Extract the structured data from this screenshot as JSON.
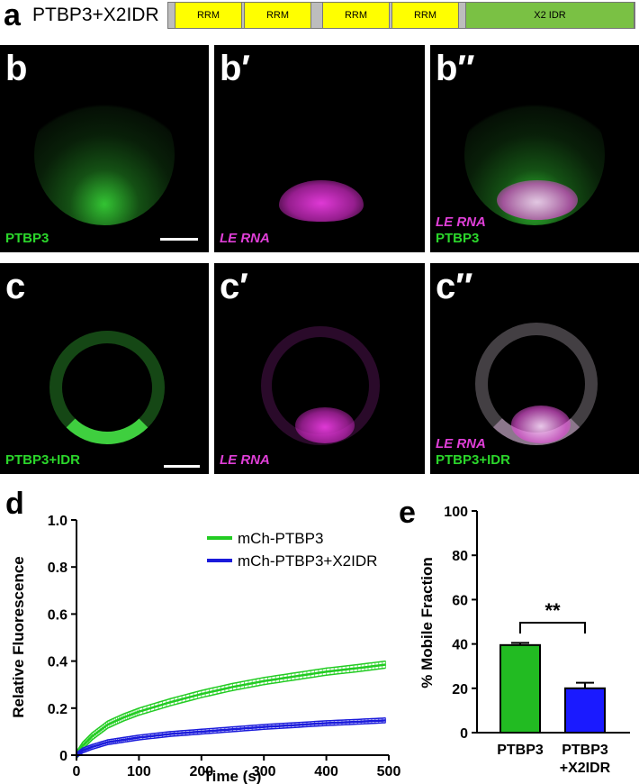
{
  "panel_a": {
    "letter": "a",
    "construct_label": "PTBP3+X2IDR",
    "domains": [
      {
        "label": "RRM",
        "color": "#ffff00"
      },
      {
        "label": "RRM",
        "color": "#ffff00"
      },
      {
        "label": "RRM",
        "color": "#ffff00"
      },
      {
        "label": "RRM",
        "color": "#ffff00"
      },
      {
        "label": "X2 IDR",
        "color": "#7ac144"
      }
    ]
  },
  "micrographs": [
    {
      "letter": "b",
      "labels": [
        {
          "text": "PTBP3",
          "color": "green"
        }
      ],
      "scale_bar": true
    },
    {
      "letter": "b′",
      "labels": [
        {
          "text": "LE RNA",
          "color": "magenta"
        }
      ],
      "scale_bar": false
    },
    {
      "letter": "b″",
      "labels": [
        {
          "text": "LE RNA",
          "color": "magenta"
        },
        {
          "text": "PTBP3",
          "color": "green"
        }
      ],
      "scale_bar": false
    },
    {
      "letter": "c",
      "labels": [
        {
          "text": "PTBP3+IDR",
          "color": "green"
        }
      ],
      "scale_bar": true
    },
    {
      "letter": "c′",
      "labels": [
        {
          "text": "LE RNA",
          "color": "magenta"
        }
      ],
      "scale_bar": false
    },
    {
      "letter": "c″",
      "labels": [
        {
          "text": "LE RNA",
          "color": "magenta"
        },
        {
          "text": "PTBP3+IDR",
          "color": "green"
        }
      ],
      "scale_bar": false
    }
  ],
  "panel_d": {
    "letter": "d",
    "chart_data": {
      "type": "line",
      "xlabel": "Time (s)",
      "ylabel": "Relative Fluorescence",
      "xlim": [
        0,
        500
      ],
      "ylim": [
        0,
        1.0
      ],
      "xticks": [
        0,
        100,
        200,
        300,
        400,
        500
      ],
      "yticks": [
        0,
        0.2,
        0.4,
        0.6,
        0.8,
        1.0
      ],
      "ytick_labels": [
        "0",
        "0.2",
        "0.4",
        "0.6",
        "0.8",
        "1.0"
      ],
      "legend_position": "top-right",
      "series": [
        {
          "name": "mCh-PTBP3",
          "color": "#22cc22",
          "x": [
            0,
            10,
            25,
            50,
            75,
            100,
            150,
            200,
            250,
            300,
            350,
            400,
            450,
            495
          ],
          "y": [
            0,
            0.04,
            0.08,
            0.13,
            0.16,
            0.185,
            0.225,
            0.26,
            0.29,
            0.315,
            0.335,
            0.355,
            0.37,
            0.385
          ],
          "err": 0.015
        },
        {
          "name": "mCh-PTBP3+X2IDR",
          "color": "#1a1adb",
          "x": [
            0,
            10,
            25,
            50,
            75,
            100,
            150,
            200,
            250,
            300,
            350,
            400,
            450,
            495
          ],
          "y": [
            0,
            0.02,
            0.035,
            0.055,
            0.065,
            0.075,
            0.09,
            0.1,
            0.11,
            0.12,
            0.128,
            0.136,
            0.142,
            0.148
          ],
          "err": 0.01
        }
      ]
    }
  },
  "panel_e": {
    "letter": "e",
    "chart_data": {
      "type": "bar",
      "ylabel": "% Mobile Fraction",
      "ylim": [
        0,
        100
      ],
      "yticks": [
        0,
        20,
        40,
        60,
        80,
        100
      ],
      "categories": [
        "PTBP3",
        "PTBP3\n+X2IDR"
      ],
      "category_lines": [
        [
          "PTBP3"
        ],
        [
          "PTBP3",
          "+X2IDR"
        ]
      ],
      "values": [
        39.5,
        20
      ],
      "errors": [
        1,
        2.5
      ],
      "colors": [
        "#22bb22",
        "#1a1aff"
      ],
      "annotation": "**"
    }
  }
}
